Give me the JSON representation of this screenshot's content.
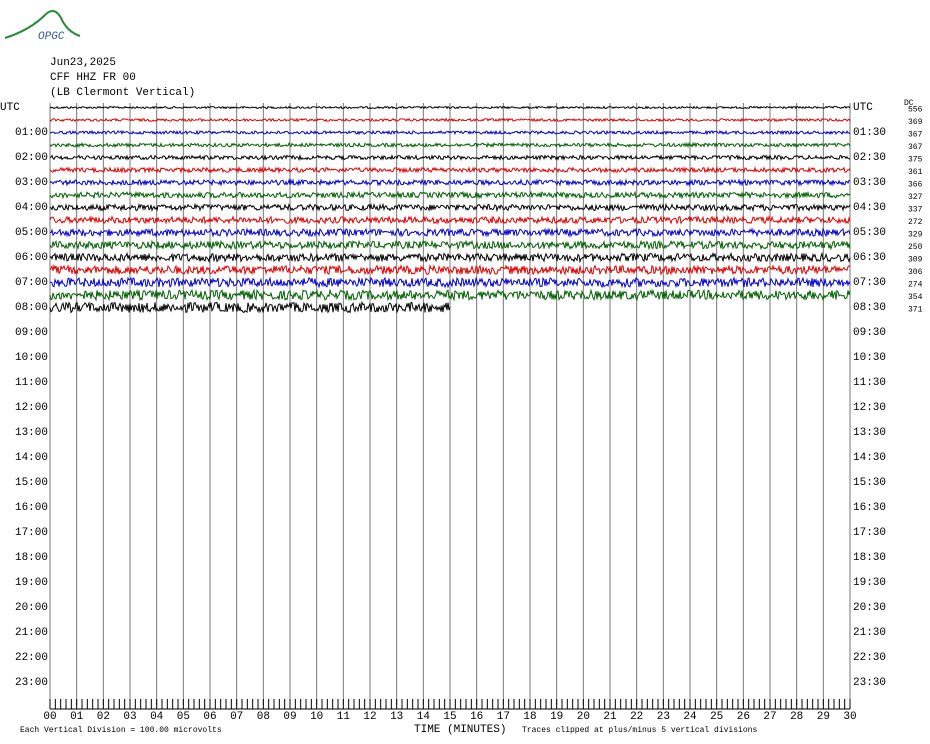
{
  "logo": "OPGC",
  "header": {
    "date": "Jun23,2025",
    "station": "CFF HHZ FR 00",
    "location": "(LB Clermont Vertical)"
  },
  "left_labels": [
    "UTC",
    "01:00",
    "02:00",
    "03:00",
    "04:00",
    "05:00",
    "06:00",
    "07:00",
    "08:00",
    "09:00",
    "10:00",
    "11:00",
    "12:00",
    "13:00",
    "14:00",
    "15:00",
    "16:00",
    "17:00",
    "18:00",
    "19:00",
    "20:00",
    "21:00",
    "22:00",
    "23:00"
  ],
  "right_labels": [
    "UTC",
    "01:30",
    "02:30",
    "03:30",
    "04:30",
    "05:30",
    "06:30",
    "07:30",
    "08:30",
    "09:30",
    "10:30",
    "11:30",
    "12:30",
    "13:30",
    "14:30",
    "15:30",
    "16:30",
    "17:30",
    "18:30",
    "19:30",
    "20:30",
    "21:30",
    "22:30",
    "23:30"
  ],
  "dc_header": "DC",
  "dc_values": [
    "556",
    "369",
    "367",
    "367",
    "375",
    "361",
    "366",
    "327",
    "337",
    "272",
    "329",
    "250",
    "309",
    "306",
    "274",
    "354",
    "371"
  ],
  "x_ticks": [
    "00",
    "01",
    "02",
    "03",
    "04",
    "05",
    "06",
    "07",
    "08",
    "09",
    "10",
    "11",
    "12",
    "13",
    "14",
    "15",
    "16",
    "17",
    "18",
    "19",
    "20",
    "21",
    "22",
    "23",
    "24",
    "25",
    "26",
    "27",
    "28",
    "29",
    "30"
  ],
  "traces": [
    {
      "color": "#000000",
      "end": 30
    },
    {
      "color": "#e00000",
      "end": 30
    },
    {
      "color": "#0000d0",
      "end": 30
    },
    {
      "color": "#006000",
      "end": 30
    },
    {
      "color": "#000000",
      "end": 30
    },
    {
      "color": "#e00000",
      "end": 30
    },
    {
      "color": "#0000d0",
      "end": 30
    },
    {
      "color": "#006000",
      "end": 30
    },
    {
      "color": "#000000",
      "end": 30
    },
    {
      "color": "#e00000",
      "end": 30
    },
    {
      "color": "#0000d0",
      "end": 30
    },
    {
      "color": "#006000",
      "end": 30
    },
    {
      "color": "#000000",
      "end": 30
    },
    {
      "color": "#e00000",
      "end": 30
    },
    {
      "color": "#0000d0",
      "end": 30
    },
    {
      "color": "#006000",
      "end": 30
    },
    {
      "color": "#000000",
      "end": 15
    }
  ],
  "footer": {
    "division": "Each Vertical Division =  100.00 microvolts",
    "axis_title": "TIME (MINUTES)",
    "clipping": "Traces clipped at plus/minus 5 vertical divisions"
  }
}
